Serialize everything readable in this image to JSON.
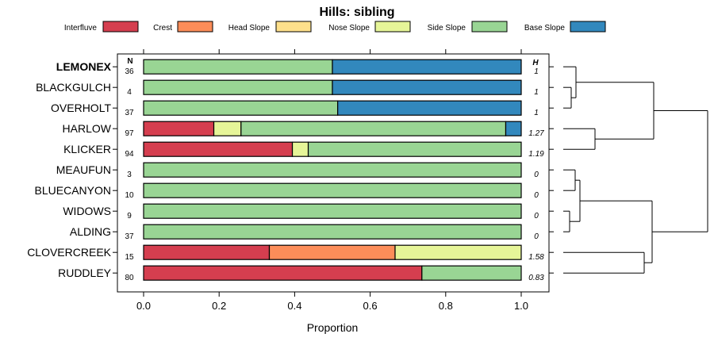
{
  "chart_data": {
    "type": "bar",
    "orientation": "horizontal",
    "stacked": true,
    "title": "Hills: sibling",
    "xlabel": "Proportion",
    "xlim": [
      0,
      1
    ],
    "x_ticks": [
      "0.0",
      "0.2",
      "0.4",
      "0.6",
      "0.8",
      "1.0"
    ],
    "n_header": "N",
    "h_header": "H",
    "legend_position": "top",
    "legend": [
      {
        "name": "Interfluve",
        "color": "#d53e4f"
      },
      {
        "name": "Crest",
        "color": "#fc8d59"
      },
      {
        "name": "Head Slope",
        "color": "#fee08b"
      },
      {
        "name": "Nose Slope",
        "color": "#e6f598"
      },
      {
        "name": "Side Slope",
        "color": "#99d594"
      },
      {
        "name": "Base Slope",
        "color": "#3288bd"
      }
    ],
    "categories": [
      "LEMONEX",
      "BLACKGULCH",
      "OVERHOLT",
      "HARLOW",
      "KLICKER",
      "MEAUFUN",
      "BLUECANYON",
      "WIDOWS",
      "ALDING",
      "CLOVERCREEK",
      "RUDDLEY"
    ],
    "highlight": "LEMONEX",
    "n": [
      "36",
      "4",
      "37",
      "97",
      "94",
      "3",
      "10",
      "9",
      "37",
      "15",
      "80"
    ],
    "h": [
      "1",
      "1",
      "1",
      "1.27",
      "1.19",
      "0",
      "0",
      "0",
      "0",
      "1.58",
      "0.83"
    ],
    "series": [
      {
        "name": "Interfluve",
        "values": [
          0,
          0,
          0,
          0.186,
          0.394,
          0,
          0,
          0,
          0,
          0.333,
          0.737
        ]
      },
      {
        "name": "Crest",
        "values": [
          0,
          0,
          0,
          0,
          0,
          0,
          0,
          0,
          0,
          0.333,
          0
        ]
      },
      {
        "name": "Head Slope",
        "values": [
          0,
          0,
          0,
          0,
          0,
          0,
          0,
          0,
          0,
          0,
          0
        ]
      },
      {
        "name": "Nose Slope",
        "values": [
          0,
          0,
          0,
          0.072,
          0.042,
          0,
          0,
          0,
          0,
          0.334,
          0
        ]
      },
      {
        "name": "Side Slope",
        "values": [
          0.5,
          0.5,
          0.514,
          0.701,
          0.564,
          1,
          1,
          1,
          1,
          0,
          0.263
        ]
      },
      {
        "name": "Base Slope",
        "values": [
          0.5,
          0.5,
          0.486,
          0.041,
          0,
          0,
          0,
          0,
          0,
          0,
          0
        ]
      }
    ],
    "dendrogram": {
      "description": "hierarchical clustering of profiles",
      "leaves_order": [
        "LEMONEX",
        "BLACKGULCH",
        "OVERHOLT",
        "HARLOW",
        "KLICKER",
        "MEAUFUN",
        "BLUECANYON",
        "WIDOWS",
        "ALDING",
        "CLOVERCREEK",
        "RUDDLEY"
      ]
    }
  }
}
